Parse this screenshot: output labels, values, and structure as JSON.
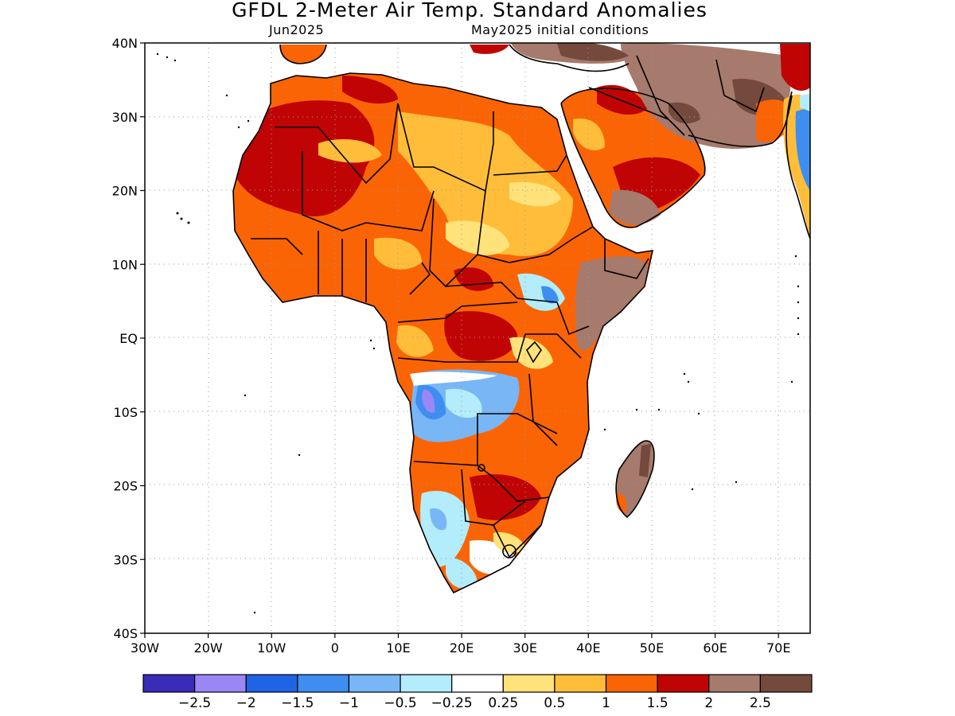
{
  "title": "GFDL 2-Meter Air Temp. Standard Anomalies",
  "subtitle_left": "Jun2025",
  "subtitle_right": "May2025 initial conditions",
  "map": {
    "lon_range": [
      -30,
      75
    ],
    "lat_range": [
      -40,
      40
    ],
    "lat_ticks": [
      {
        "value": 40,
        "label": "40N"
      },
      {
        "value": 30,
        "label": "30N"
      },
      {
        "value": 20,
        "label": "20N"
      },
      {
        "value": 10,
        "label": "10N"
      },
      {
        "value": 0,
        "label": "EQ"
      },
      {
        "value": -10,
        "label": "10S"
      },
      {
        "value": -20,
        "label": "20S"
      },
      {
        "value": -30,
        "label": "30S"
      },
      {
        "value": -40,
        "label": "40S"
      }
    ],
    "lon_ticks": [
      {
        "value": -30,
        "label": "30W"
      },
      {
        "value": -20,
        "label": "20W"
      },
      {
        "value": -10,
        "label": "10W"
      },
      {
        "value": 0,
        "label": "0"
      },
      {
        "value": 10,
        "label": "10E"
      },
      {
        "value": 20,
        "label": "20E"
      },
      {
        "value": 30,
        "label": "30E"
      },
      {
        "value": 40,
        "label": "40E"
      },
      {
        "value": 50,
        "label": "50E"
      },
      {
        "value": 60,
        "label": "60E"
      },
      {
        "value": 70,
        "label": "70E"
      }
    ],
    "gridlines": true
  },
  "colorbar": {
    "colors": [
      "#3a2bb8",
      "#9b86f5",
      "#1f63e6",
      "#3d8ef0",
      "#78b6f6",
      "#b3ecfa",
      "#ffffff",
      "#ffe27a",
      "#ffbd3a",
      "#fb6404",
      "#c00404",
      "#a67a6c",
      "#744a3c"
    ],
    "labels": [
      "-2.5",
      "-2",
      "-1.5",
      "-1",
      "-0.5",
      "-0.25",
      "0.25",
      "0.5",
      "1",
      "1.5",
      "2",
      "2.5"
    ]
  },
  "anomaly_regions": [
    {
      "name": "Sahara",
      "level": "1.5-2"
    },
    {
      "name": "Middle East / Iran",
      "level": ">2.5"
    },
    {
      "name": "Angola",
      "level": "-1 to -1.5"
    },
    {
      "name": "Madagascar",
      "level": ">2.5"
    },
    {
      "name": "Horn of Africa",
      "level": ">2.5"
    }
  ]
}
